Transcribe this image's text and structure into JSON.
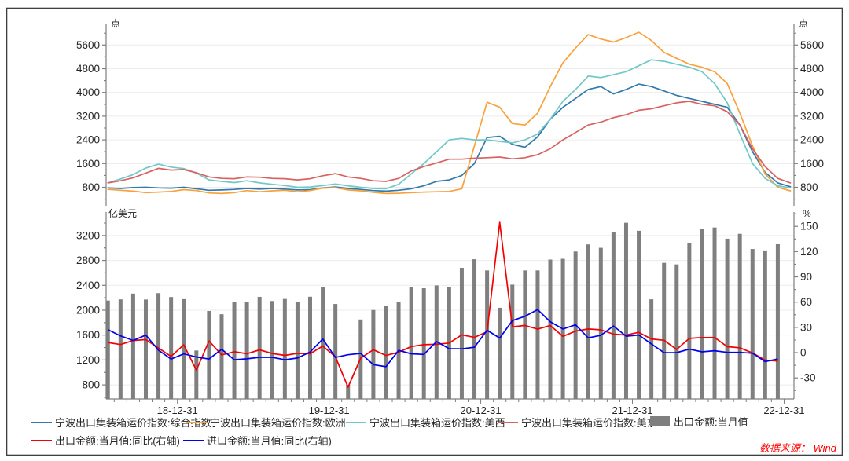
{
  "axes": {
    "top_left_unit": "点",
    "top_right_unit": "点",
    "bottom_left_unit": "亿美元",
    "bottom_right_unit": "%"
  },
  "source_note": "数据来源： Wind",
  "colors": {
    "composite": "#3379a9",
    "europe": "#f9a13c",
    "us_west": "#72c7c9",
    "us_east": "#d96161",
    "export_bar": "#7f7f7f",
    "export_yoy": "#f40000",
    "import_yoy": "#0000f0",
    "grid": "#ececec",
    "axis": "#7f7f7f",
    "text": "#262626",
    "border": "#3f3f3f",
    "source": "#ff0000"
  },
  "legend": {
    "row1": [
      {
        "key": "composite",
        "type": "line",
        "color": "#3379a9",
        "label": "宁波出口集装箱运价指数:综合指数"
      },
      {
        "key": "europe",
        "type": "line",
        "color": "#f9a13c",
        "label": "宁波出口集装箱运价指数:欧洲"
      },
      {
        "key": "us-west",
        "type": "line",
        "color": "#72c7c9",
        "label": "宁波出口集装箱运价指数:美西"
      },
      {
        "key": "us-east",
        "type": "line",
        "color": "#d96161",
        "label": "宁波出口集装箱运价指数:美东"
      },
      {
        "key": "export-amount",
        "type": "rect",
        "color": "#7f7f7f",
        "label": "出口金额:当月值"
      }
    ],
    "row2": [
      {
        "key": "export-yoy",
        "type": "line",
        "color": "#f40000",
        "label": "出口金额:当月值:同比(右轴)"
      },
      {
        "key": "import-yoy",
        "type": "line",
        "color": "#0000f0",
        "label": "进口金额:当月值:同比(右轴)"
      }
    ]
  },
  "chart_data": [
    {
      "type": "line",
      "panel": "top",
      "ylabel_left": "点",
      "ylabel_right": "点",
      "yticks": [
        800,
        1600,
        2400,
        3200,
        4000,
        4800,
        5600
      ],
      "ylim": [
        178,
        6323
      ],
      "x_tick_labels": [
        "18-12-31",
        "19-12-31",
        "20-12-31",
        "21-12-31",
        "22-12-31"
      ],
      "grid": true,
      "legend_position": "bottom",
      "months": [
        "2018-07",
        "2018-08",
        "2018-09",
        "2018-10",
        "2018-11",
        "2018-12",
        "2019-01",
        "2019-02",
        "2019-03",
        "2019-04",
        "2019-05",
        "2019-06",
        "2019-07",
        "2019-08",
        "2019-09",
        "2019-10",
        "2019-11",
        "2019-12",
        "2020-01",
        "2020-02",
        "2020-03",
        "2020-04",
        "2020-05",
        "2020-06",
        "2020-07",
        "2020-08",
        "2020-09",
        "2020-10",
        "2020-11",
        "2020-12",
        "2021-01",
        "2021-02",
        "2021-03",
        "2021-04",
        "2021-05",
        "2021-06",
        "2021-07",
        "2021-08",
        "2021-09",
        "2021-10",
        "2021-11",
        "2021-12",
        "2022-01",
        "2022-02",
        "2022-03",
        "2022-04",
        "2022-05",
        "2022-06",
        "2022-07",
        "2022-08",
        "2022-09",
        "2022-10",
        "2022-11",
        "2022-12",
        "2023-01"
      ],
      "series": [
        {
          "key": "composite",
          "name": "宁波出口集装箱运价指数:综合指数",
          "color": "#3379a9",
          "values": [
            780,
            760,
            790,
            800,
            780,
            770,
            800,
            750,
            700,
            710,
            730,
            760,
            740,
            760,
            740,
            710,
            720,
            780,
            810,
            760,
            730,
            690,
            670,
            700,
            750,
            850,
            1000,
            1050,
            1200,
            1600,
            2480,
            2520,
            2250,
            2150,
            2500,
            3100,
            3500,
            3800,
            4100,
            4200,
            3950,
            4100,
            4280,
            4200,
            4050,
            3900,
            3800,
            3700,
            3600,
            3500,
            2900,
            2000,
            1300,
            950,
            820
          ]
        },
        {
          "key": "europe",
          "name": "宁波出口集装箱运价指数:欧洲",
          "color": "#f9a13c",
          "values": [
            730,
            700,
            670,
            620,
            640,
            660,
            720,
            690,
            610,
            590,
            620,
            690,
            650,
            680,
            700,
            650,
            690,
            770,
            790,
            710,
            680,
            630,
            590,
            600,
            620,
            640,
            650,
            660,
            750,
            2200,
            3670,
            3500,
            2950,
            2900,
            3300,
            4200,
            5000,
            5500,
            5950,
            5800,
            5700,
            5850,
            6030,
            5750,
            5350,
            5150,
            4950,
            4850,
            4700,
            4300,
            3300,
            2200,
            1250,
            800,
            680
          ]
        },
        {
          "key": "us-west",
          "name": "宁波出口集装箱运价指数:美西",
          "color": "#72c7c9",
          "values": [
            950,
            1080,
            1230,
            1450,
            1580,
            1480,
            1430,
            1280,
            1050,
            1000,
            960,
            1020,
            950,
            900,
            860,
            800,
            810,
            860,
            910,
            850,
            800,
            760,
            750,
            900,
            1250,
            1600,
            2000,
            2400,
            2450,
            2400,
            2400,
            2350,
            2300,
            2400,
            2600,
            3100,
            3700,
            4100,
            4550,
            4500,
            4600,
            4700,
            4900,
            5100,
            5050,
            4950,
            4850,
            4700,
            4300,
            3650,
            2600,
            1600,
            1100,
            850,
            780
          ]
        },
        {
          "key": "us-east",
          "name": "宁波出口集装箱运价指数:美东",
          "color": "#d96161",
          "values": [
            950,
            1020,
            1120,
            1280,
            1440,
            1380,
            1400,
            1290,
            1150,
            1100,
            1090,
            1150,
            1140,
            1100,
            1090,
            1050,
            1090,
            1190,
            1260,
            1150,
            1100,
            1020,
            1000,
            1100,
            1350,
            1500,
            1620,
            1750,
            1750,
            1780,
            1800,
            1820,
            1760,
            1800,
            1900,
            2100,
            2400,
            2650,
            2900,
            3000,
            3150,
            3250,
            3400,
            3450,
            3550,
            3650,
            3700,
            3600,
            3550,
            3350,
            2900,
            2100,
            1500,
            1100,
            950
          ]
        }
      ]
    },
    {
      "type": "bar",
      "panel": "bottom",
      "ylabel_left": "亿美元",
      "ylabel_right": "%",
      "yticks_left": [
        800,
        1200,
        1600,
        2000,
        2400,
        2800,
        3200
      ],
      "ylim_left": [
        574,
        3577
      ],
      "yticks_right": [
        -30,
        0,
        30,
        60,
        90,
        120,
        150
      ],
      "ylim_right": [
        -55,
        167
      ],
      "x_tick_labels": [
        "18-12-31",
        "19-12-31",
        "20-12-31",
        "21-12-31",
        "22-12-31"
      ],
      "grid": true,
      "months": [
        "2018-07",
        "2018-08",
        "2018-09",
        "2018-10",
        "2018-11",
        "2018-12",
        "2019-01",
        "2019-02",
        "2019-03",
        "2019-04",
        "2019-05",
        "2019-06",
        "2019-07",
        "2019-08",
        "2019-09",
        "2019-10",
        "2019-11",
        "2019-12",
        "2020-01",
        "2020-02",
        "2020-03",
        "2020-04",
        "2020-05",
        "2020-06",
        "2020-07",
        "2020-08",
        "2020-09",
        "2020-10",
        "2020-11",
        "2020-12",
        "2021-01",
        "2021-02",
        "2021-03",
        "2021-04",
        "2021-05",
        "2021-06",
        "2021-07",
        "2021-08",
        "2021-09",
        "2021-10",
        "2021-11",
        "2021-12",
        "2022-01",
        "2022-02",
        "2022-03",
        "2022-04",
        "2022-05",
        "2022-06",
        "2022-07",
        "2022-08",
        "2022-09",
        "2022-10",
        "2022-11",
        "2022-12"
      ],
      "bars": {
        "key": "export-amount",
        "name": "出口金额:当月值",
        "color": "#7f7f7f",
        "axis": "left",
        "values": [
          2155,
          2174,
          2267,
          2172,
          2274,
          2212,
          2178,
          1352,
          1987,
          1935,
          2138,
          2128,
          2215,
          2148,
          2181,
          2129,
          2217,
          2376,
          2100,
          800,
          1851,
          2003,
          2068,
          2135,
          2376,
          2353,
          2398,
          2371,
          2681,
          2819,
          2639,
          2039,
          2411,
          2639,
          2639,
          2814,
          2826,
          2943,
          3057,
          3002,
          3255,
          3405,
          3276,
          2175,
          2761,
          2736,
          3083,
          3312,
          3329,
          3149,
          3227,
          2983,
          2960,
          3060
        ]
      },
      "lines": [
        {
          "key": "export-yoy",
          "name": "出口金额:当月值:同比(右轴)",
          "color": "#f40000",
          "axis": "right",
          "values": [
            12.1,
            9.6,
            14.4,
            15.5,
            5.4,
            -4.4,
            9.3,
            -20.8,
            13.8,
            -2.7,
            1.1,
            -1.3,
            3.3,
            -1.0,
            -3.2,
            -0.8,
            -1.3,
            7.9,
            -5.0,
            -41.0,
            -6.6,
            3.5,
            -3.3,
            0.5,
            7.2,
            9.5,
            9.9,
            11.4,
            21.1,
            18.1,
            24.8,
            154.8,
            30.6,
            32.3,
            27.9,
            32.2,
            19.3,
            25.6,
            28.1,
            27.1,
            22.0,
            20.9,
            24.1,
            16.3,
            14.7,
            3.9,
            16.9,
            17.9,
            18.0,
            7.1,
            5.7,
            -0.3,
            -8.9,
            -9.9
          ]
        },
        {
          "key": "import-yoy",
          "name": "进口金额:当月值:同比(右轴)",
          "color": "#0000f0",
          "axis": "right",
          "values": [
            27.3,
            19.9,
            14.5,
            20.8,
            2.9,
            -7.6,
            -1.5,
            -5.2,
            -7.6,
            4.0,
            -8.5,
            -7.3,
            -5.6,
            -5.6,
            -8.5,
            -6.4,
            0.8,
            16.2,
            -5.7,
            -2.5,
            -0.9,
            -14.2,
            -16.7,
            2.7,
            -1.4,
            -2.1,
            13.2,
            4.7,
            4.5,
            6.5,
            26.6,
            17.3,
            38.1,
            43.1,
            51.1,
            36.7,
            28.1,
            33.1,
            17.6,
            20.6,
            31.7,
            19.5,
            20.9,
            10.4,
            -0.1,
            0.0,
            4.1,
            1.0,
            2.3,
            0.3,
            0.3,
            -0.7,
            -10.6,
            -7.5
          ]
        }
      ]
    }
  ]
}
